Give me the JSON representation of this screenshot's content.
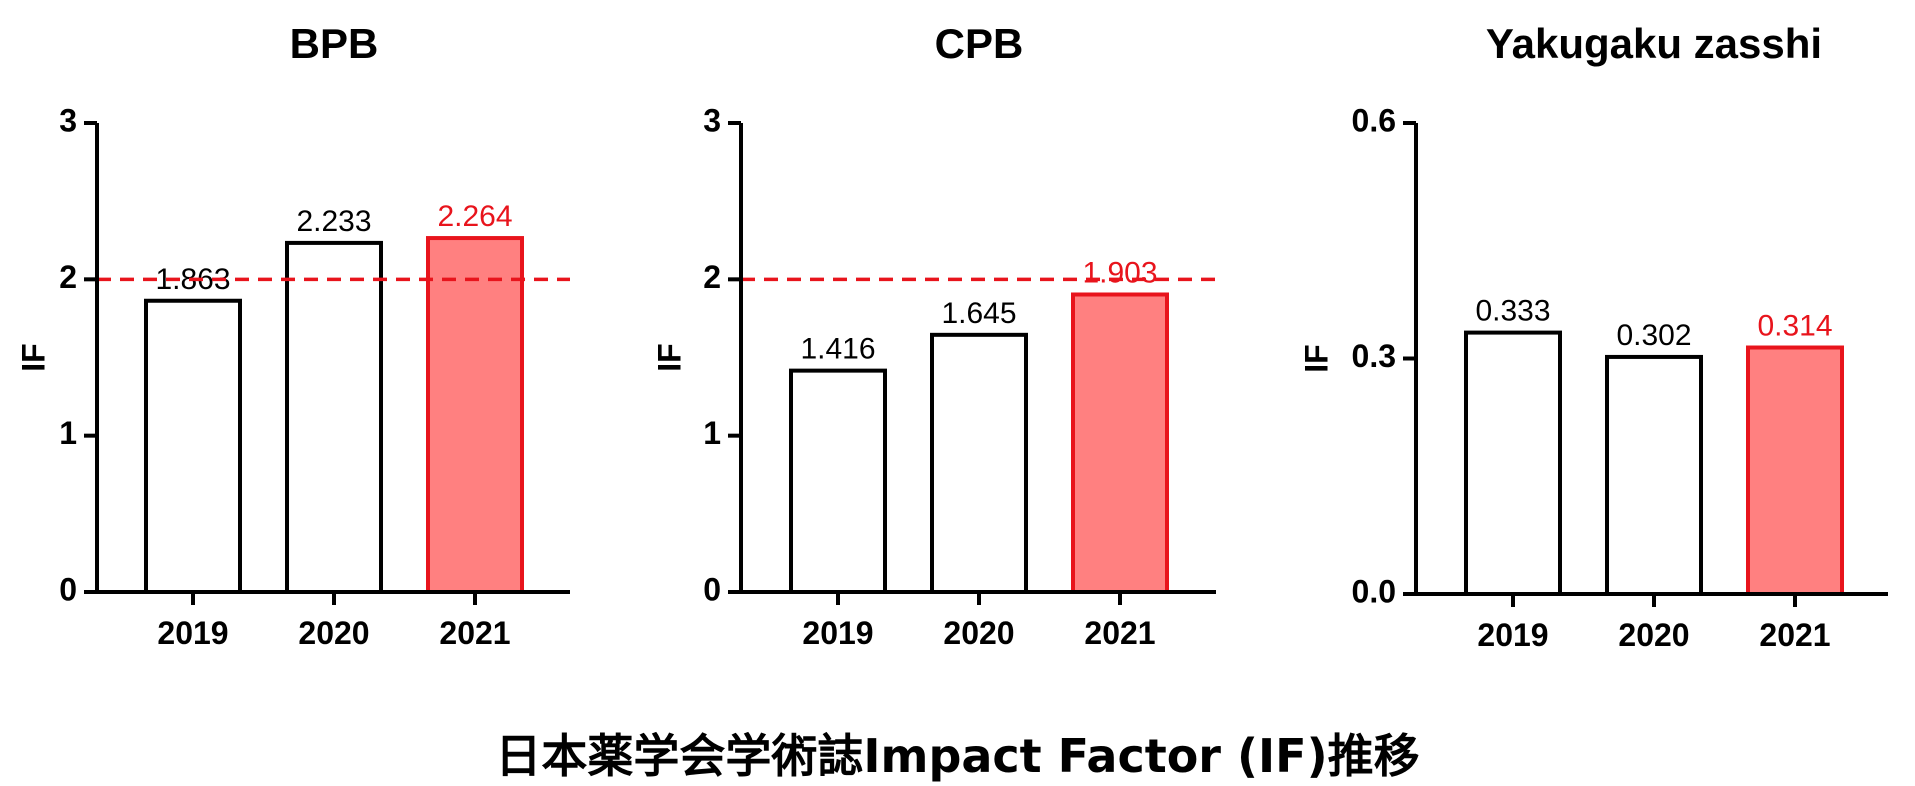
{
  "caption": "日本薬学会学術誌Impact Factor (IF)推移",
  "colors": {
    "highlight_stroke": "#e8141c",
    "highlight_fill": "#ff8080",
    "base_stroke": "#000000",
    "base_fill": "#ffffff",
    "reference_line": "#e8141c"
  },
  "chart_data": [
    {
      "type": "bar",
      "title": "BPB",
      "ylabel": "IF",
      "categories": [
        "2019",
        "2020",
        "2021"
      ],
      "values": [
        1.863,
        2.233,
        2.264
      ],
      "value_labels": [
        "1.863",
        "2.233",
        "2.264"
      ],
      "highlight_index": 2,
      "ylim": [
        0,
        3
      ],
      "yticks": [
        0,
        1,
        2,
        3
      ],
      "ytick_labels": [
        "0",
        "1",
        "2",
        "3"
      ],
      "reference_line": 2
    },
    {
      "type": "bar",
      "title": "CPB",
      "ylabel": "IF",
      "categories": [
        "2019",
        "2020",
        "2021"
      ],
      "values": [
        1.416,
        1.645,
        1.903
      ],
      "value_labels": [
        "1.416",
        "1.645",
        "1.903"
      ],
      "highlight_index": 2,
      "ylim": [
        0,
        3
      ],
      "yticks": [
        0,
        1,
        2,
        3
      ],
      "ytick_labels": [
        "0",
        "1",
        "2",
        "3"
      ],
      "reference_line": 2
    },
    {
      "type": "bar",
      "title": "Yakugaku zasshi",
      "ylabel": "IF",
      "categories": [
        "2019",
        "2020",
        "2021"
      ],
      "values": [
        0.333,
        0.302,
        0.314
      ],
      "value_labels": [
        "0.333",
        "0.302",
        "0.314"
      ],
      "highlight_index": 2,
      "ylim": [
        0,
        0.6
      ],
      "yticks": [
        0,
        0.3,
        0.6
      ],
      "ytick_labels": [
        "0.0",
        "0.3",
        "0.6"
      ],
      "reference_line": null
    }
  ]
}
